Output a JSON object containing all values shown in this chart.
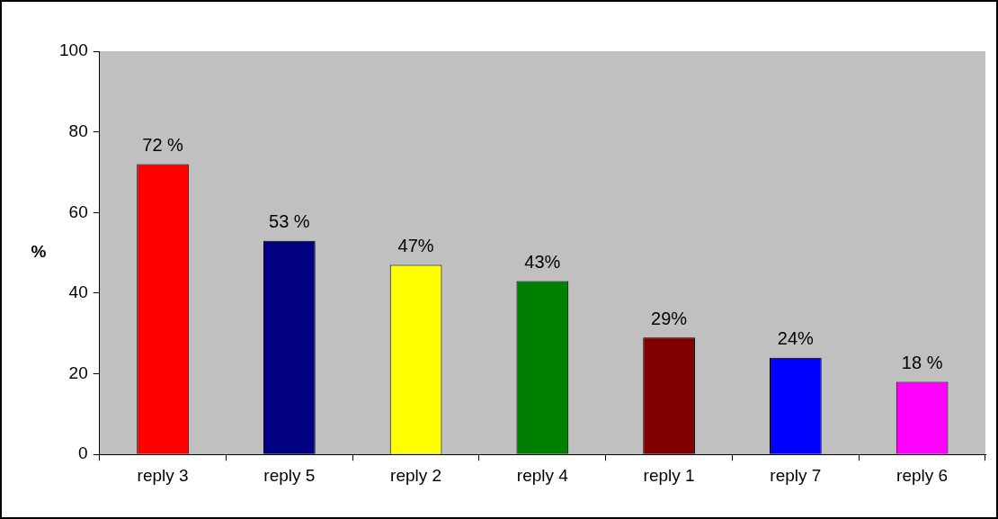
{
  "chart_data": {
    "type": "bar",
    "ylabel": "%",
    "categories": [
      "reply 3",
      "reply 5",
      "reply 2",
      "reply 4",
      "reply 1",
      "reply 7",
      "reply 6"
    ],
    "values": [
      72,
      53,
      47,
      43,
      29,
      24,
      18
    ],
    "colors": [
      "#ff0000",
      "#000080",
      "#ffff00",
      "#008000",
      "#800000",
      "#0000ff",
      "#ff00ff"
    ],
    "value_labels": [
      "72 %",
      "53 %",
      "47%",
      "43%",
      "29%",
      "24%",
      "18 %"
    ],
    "ylim": [
      0,
      100
    ],
    "yticks": [
      0,
      20,
      40,
      60,
      80,
      100
    ],
    "grid": false,
    "legend": false
  }
}
